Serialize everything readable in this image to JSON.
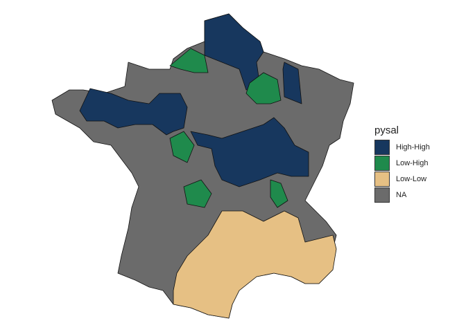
{
  "legend": {
    "title": "pysal",
    "items": [
      {
        "label": "High-High",
        "color": "#17375e"
      },
      {
        "label": "Low-High",
        "color": "#1f8a4c"
      },
      {
        "label": "Low-Low",
        "color": "#e6c084"
      },
      {
        "label": "NA",
        "color": "#6b6b6b"
      }
    ]
  },
  "map": {
    "regions": [
      {
        "cluster": "NA"
      },
      {
        "cluster": "Low-Low"
      },
      {
        "cluster": "High-High"
      },
      {
        "cluster": "High-High"
      },
      {
        "cluster": "High-High"
      },
      {
        "cluster": "High-High"
      },
      {
        "cluster": "Low-High"
      },
      {
        "cluster": "Low-High"
      },
      {
        "cluster": "Low-High"
      },
      {
        "cluster": "Low-High"
      },
      {
        "cluster": "Low-High"
      }
    ]
  }
}
